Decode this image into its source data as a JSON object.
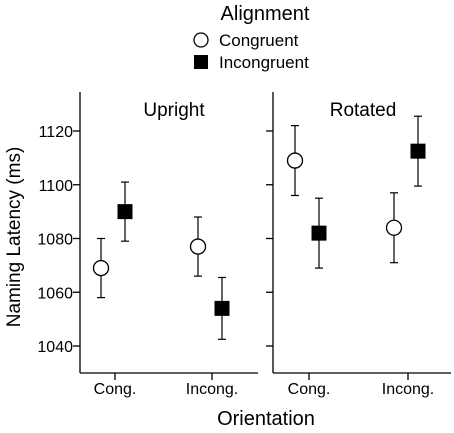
{
  "chart_data": {
    "type": "scatter",
    "xlabel": "Orientation",
    "ylabel": "Naming Latency (ms)",
    "ylim": [
      1030,
      1135
    ],
    "yticks": [
      1040,
      1060,
      1080,
      1100,
      1120
    ],
    "legend": {
      "title": "Alignment",
      "placement": "top-center",
      "entries": [
        {
          "name": "Congruent",
          "marker": "open-circle"
        },
        {
          "name": "Incongruent",
          "marker": "filled-square"
        }
      ]
    },
    "panels": [
      {
        "title": "Upright",
        "categories": [
          "Cong.",
          "Incong."
        ],
        "series": [
          {
            "name": "Congruent",
            "values": [
              1069,
              1077
            ],
            "errors": [
              11,
              11
            ]
          },
          {
            "name": "Incongruent",
            "values": [
              1090,
              1054
            ],
            "errors": [
              11,
              11.5
            ]
          }
        ]
      },
      {
        "title": "Rotated",
        "categories": [
          "Cong.",
          "Incong."
        ],
        "series": [
          {
            "name": "Congruent",
            "values": [
              1109,
              1084
            ],
            "errors": [
              13,
              13
            ]
          },
          {
            "name": "Incongruent",
            "values": [
              1082,
              1112.5
            ],
            "errors": [
              13,
              13
            ]
          }
        ]
      }
    ]
  }
}
